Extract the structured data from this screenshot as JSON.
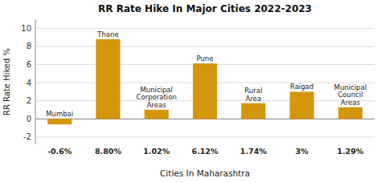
{
  "chart_data": {
    "type": "bar",
    "title": "RR Rate Hike In Major Cities 2022-2023",
    "xlabel": "Cities In Maharashtra",
    "ylabel": "RR Rate Hiked %",
    "categories": [
      "Mumbai",
      "Thane",
      "Municipal\nCorporation\nAreas",
      "Pune",
      "Rural\nArea",
      "Raigad",
      "Municipal\nCouncil\nAreas"
    ],
    "values": [
      -0.6,
      8.8,
      1.02,
      6.12,
      1.74,
      3.0,
      1.29
    ],
    "value_labels": [
      "-0.6%",
      "8.80%",
      "1.02%",
      "6.12%",
      "1.74%",
      "3%",
      "1.29%"
    ],
    "data_labels": true,
    "color": "#d4960a",
    "ylim": [
      -2.8,
      11.0
    ],
    "yticks": [
      -2,
      0,
      2,
      4,
      6,
      8,
      10
    ],
    "grid": true
  }
}
